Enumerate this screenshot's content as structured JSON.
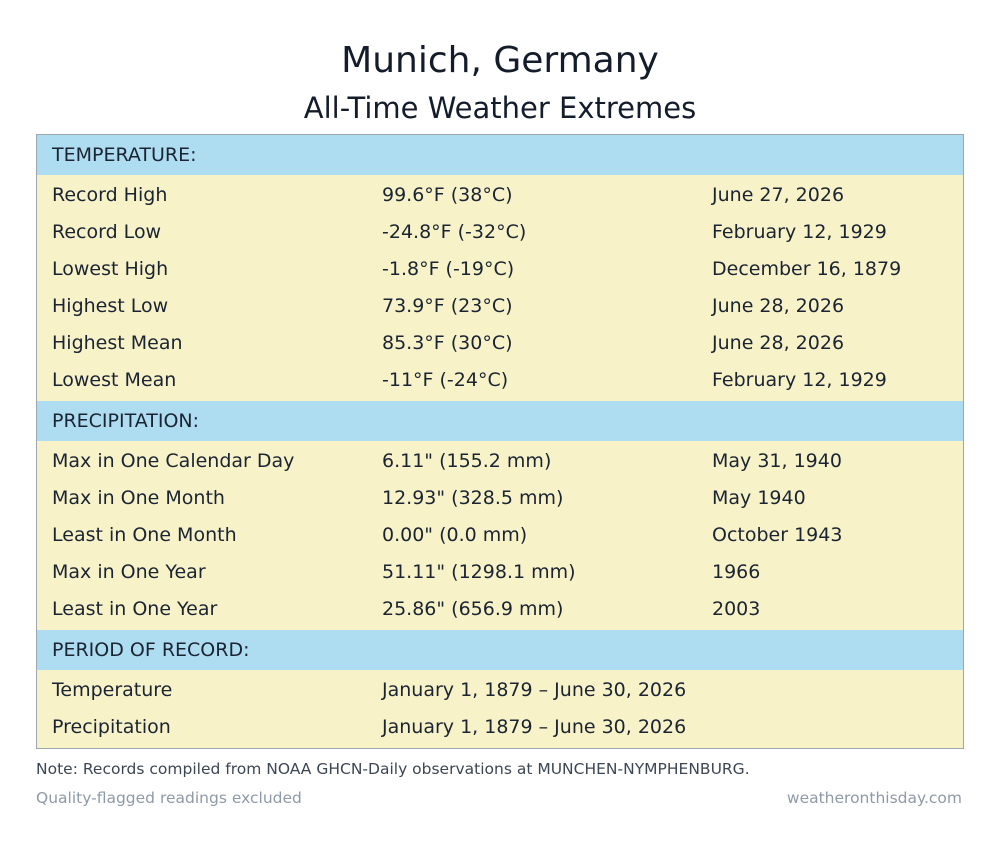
{
  "title": "Munich, Germany",
  "subtitle": "All-Time Weather Extremes",
  "sections": [
    {
      "header": "TEMPERATURE:",
      "rows": [
        {
          "label": "Record High",
          "value": "99.6°F (38°C)",
          "date": "June 27, 2026"
        },
        {
          "label": "Record Low",
          "value": "-24.8°F (-32°C)",
          "date": "February 12, 1929"
        },
        {
          "label": "Lowest High",
          "value": "-1.8°F (-19°C)",
          "date": "December 16, 1879"
        },
        {
          "label": "Highest Low",
          "value": "73.9°F (23°C)",
          "date": "June 28, 2026"
        },
        {
          "label": "Highest Mean",
          "value": "85.3°F (30°C)",
          "date": "June 28, 2026"
        },
        {
          "label": "Lowest Mean",
          "value": "-11°F (-24°C)",
          "date": "February 12, 1929"
        }
      ]
    },
    {
      "header": "PRECIPITATION:",
      "rows": [
        {
          "label": "Max in One Calendar Day",
          "value": "6.11\" (155.2 mm)",
          "date": "May 31, 1940"
        },
        {
          "label": "Max in One Month",
          "value": "12.93\" (328.5 mm)",
          "date": "May 1940"
        },
        {
          "label": "Least in One Month",
          "value": "0.00\" (0.0 mm)",
          "date": "October 1943"
        },
        {
          "label": "Max in One Year",
          "value": "51.11\" (1298.1 mm)",
          "date": "1966"
        },
        {
          "label": "Least in One Year",
          "value": "25.86\" (656.9 mm)",
          "date": "2003"
        }
      ]
    },
    {
      "header": "PERIOD OF RECORD:",
      "rows": [
        {
          "label": "Temperature",
          "value": "January 1, 1879 – June 30, 2026",
          "date": ""
        },
        {
          "label": "Precipitation",
          "value": "January 1, 1879 – June 30, 2026",
          "date": ""
        }
      ]
    }
  ],
  "note": "Note: Records compiled from NOAA GHCN-Daily observations at MUNCHEN-NYMPHENBURG.",
  "footer_left": "Quality-flagged readings excluded",
  "footer_right": "weatheronthisday.com"
}
